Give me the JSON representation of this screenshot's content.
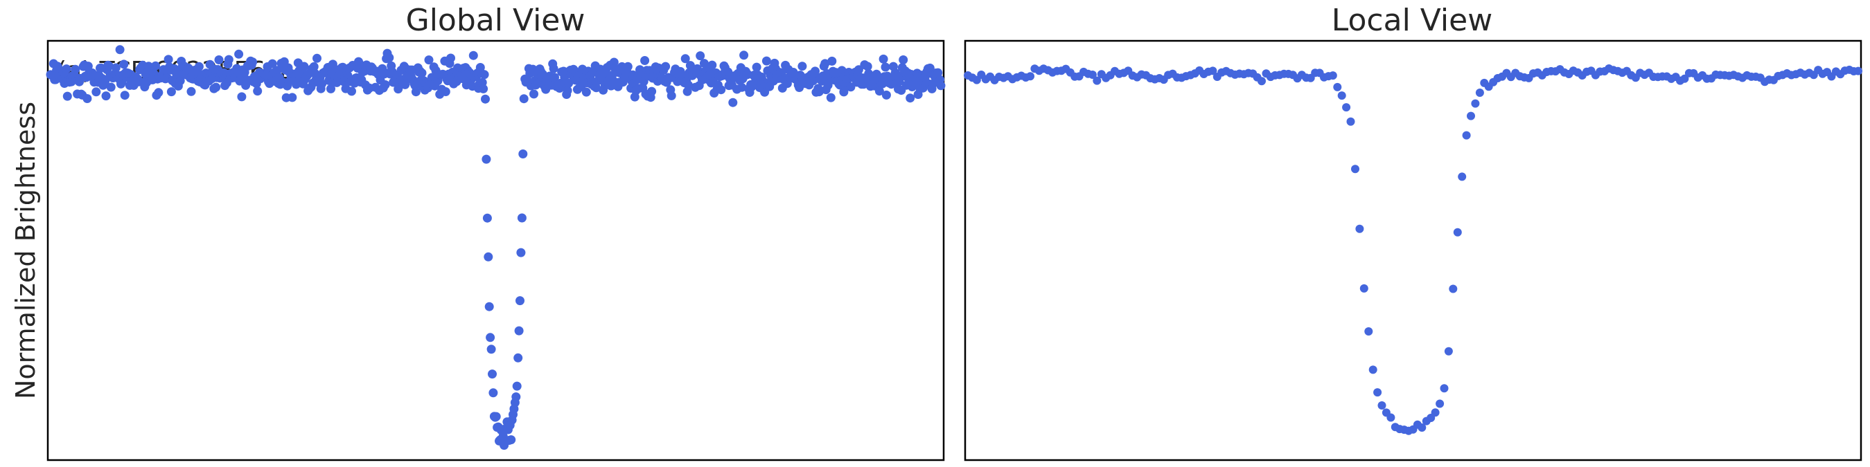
{
  "chart_data": [
    {
      "type": "scatter",
      "title": "Global View",
      "ylabel": "Normalized Brightness",
      "annotation": "(a) TCE 6022556-1",
      "x_ticks": "none",
      "y_ticks": "none",
      "grid": false,
      "legend": "none",
      "xlim": [
        0,
        1
      ],
      "ylim": [
        -1.05,
        0.1
      ],
      "series": [
        {
          "color": "#4466DD",
          "marker": "circle",
          "baseline": 0.0,
          "scatter_sd": 0.022,
          "n_points": 900,
          "transit_center": 0.51,
          "transit_halfwidth": 0.022,
          "transit_min": -0.98,
          "values": [
            [
              0.0,
              0.01
            ],
            [
              0.1,
              0.0
            ],
            [
              0.2,
              0.01
            ],
            [
              0.3,
              0.0
            ],
            [
              0.4,
              0.01
            ],
            [
              0.48,
              0.0
            ],
            [
              0.49,
              -0.1
            ],
            [
              0.495,
              -0.35
            ],
            [
              0.5,
              -0.7
            ],
            [
              0.505,
              -0.85
            ],
            [
              0.51,
              -0.98
            ],
            [
              0.515,
              -0.9
            ],
            [
              0.52,
              -0.8
            ],
            [
              0.525,
              -0.4
            ],
            [
              0.53,
              -0.15
            ],
            [
              0.54,
              0.0
            ],
            [
              0.6,
              0.01
            ],
            [
              0.7,
              0.0
            ],
            [
              0.8,
              0.01
            ],
            [
              0.9,
              0.0
            ],
            [
              1.0,
              0.01
            ]
          ]
        }
      ]
    },
    {
      "type": "scatter",
      "title": "Local View",
      "x_ticks": "none",
      "y_ticks": "none",
      "grid": false,
      "legend": "none",
      "xlim": [
        0,
        1
      ],
      "ylim": [
        -1.05,
        0.1
      ],
      "series": [
        {
          "color": "#4466DD",
          "marker": "circle",
          "values": [
            [
              0.0,
              0.0
            ],
            [
              0.03,
              0.0
            ],
            [
              0.06,
              0.0
            ],
            [
              0.09,
              0.02
            ],
            [
              0.12,
              0.01
            ],
            [
              0.15,
              0.0
            ],
            [
              0.18,
              0.01
            ],
            [
              0.21,
              0.0
            ],
            [
              0.24,
              0.0
            ],
            [
              0.27,
              0.02
            ],
            [
              0.3,
              0.01
            ],
            [
              0.33,
              0.0
            ],
            [
              0.36,
              0.01
            ],
            [
              0.39,
              0.01
            ],
            [
              0.41,
              0.0
            ],
            [
              0.42,
              -0.05
            ],
            [
              0.43,
              -0.12
            ],
            [
              0.435,
              -0.25
            ],
            [
              0.44,
              -0.42
            ],
            [
              0.445,
              -0.58
            ],
            [
              0.45,
              -0.7
            ],
            [
              0.455,
              -0.8
            ],
            [
              0.46,
              -0.87
            ],
            [
              0.47,
              -0.92
            ],
            [
              0.48,
              -0.955
            ],
            [
              0.49,
              -0.97
            ],
            [
              0.5,
              -0.965
            ],
            [
              0.51,
              -0.955
            ],
            [
              0.52,
              -0.94
            ],
            [
              0.53,
              -0.9
            ],
            [
              0.535,
              -0.85
            ],
            [
              0.54,
              -0.75
            ],
            [
              0.545,
              -0.58
            ],
            [
              0.55,
              -0.42
            ],
            [
              0.555,
              -0.27
            ],
            [
              0.56,
              -0.15
            ],
            [
              0.57,
              -0.07
            ],
            [
              0.58,
              -0.02
            ],
            [
              0.6,
              0.0
            ],
            [
              0.63,
              0.0
            ],
            [
              0.66,
              0.02
            ],
            [
              0.69,
              0.01
            ],
            [
              0.72,
              0.02
            ],
            [
              0.75,
              0.01
            ],
            [
              0.78,
              0.0
            ],
            [
              0.81,
              0.0
            ],
            [
              0.84,
              0.01
            ],
            [
              0.87,
              0.0
            ],
            [
              0.9,
              0.0
            ],
            [
              0.93,
              0.01
            ],
            [
              0.96,
              0.01
            ],
            [
              1.0,
              0.02
            ]
          ]
        }
      ]
    }
  ]
}
